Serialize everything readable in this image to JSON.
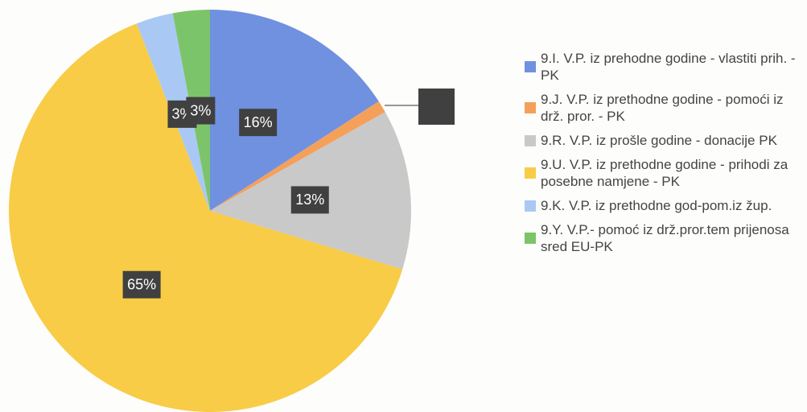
{
  "chart_data": {
    "type": "pie",
    "categories": [
      "9.I. V.P. iz prehodne godine - vlastiti prih. - PK",
      "9.J. V.P. iz prethodne godine - pomoći iz drž. pror. - PK",
      "9.R. V.P. iz prošle godine - donacije PK",
      "9.U. V.P. iz prethodne godine - prihodi za posebne namjene - PK",
      "9.K. V.P. iz prethodne god-pom.iz žup.",
      "9.Y. V.P.- pomoć iz drž.pror.tem prijenosa sred EU-PK"
    ],
    "values": [
      16,
      1,
      13,
      65,
      3,
      3
    ],
    "value_labels": [
      "16%",
      null,
      "13%",
      "65%",
      "3%",
      "3%"
    ],
    "colors": [
      "#7091e0",
      "#f5a05a",
      "#c9c9c9",
      "#f8cc46",
      "#a9c9f4",
      "#7cc46a"
    ]
  }
}
